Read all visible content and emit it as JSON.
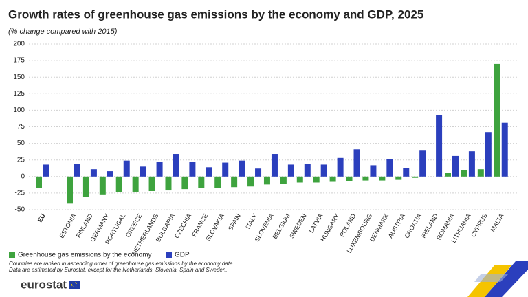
{
  "chart_data": {
    "type": "bar",
    "title": "Growth rates of greenhouse gas emissions by the economy and GDP, 2025",
    "subtitle": "(% change compared with 2015)",
    "categories": [
      "EU",
      "ESTONIA",
      "FINLAND",
      "GERMANY",
      "PORTUGAL",
      "GREECE",
      "NETHERLANDS",
      "BULGARIA",
      "CZECHIA",
      "FRANCE",
      "SLOVAKIA",
      "SPAIN",
      "ITALY",
      "SLOVENIA",
      "BELGIUM",
      "SWEDEN",
      "LATVIA",
      "HUNGARY",
      "POLAND",
      "LUXEMBOURG",
      "DENMARK",
      "AUSTRIA",
      "CROATIA",
      "IRELAND",
      "ROMANIA",
      "LITHUANIA",
      "CYPRUS",
      "MALTA"
    ],
    "series": [
      {
        "name": "Greenhouse gas emissions by the economy",
        "color": "#3ea33e",
        "values": [
          -17,
          -41,
          -31,
          -27,
          -24,
          -23,
          -22,
          -21,
          -19,
          -17,
          -17,
          -16,
          -15,
          -12,
          -11,
          -9,
          -9,
          -8,
          -7,
          -6,
          -6,
          -5,
          -2,
          0,
          6,
          10,
          11,
          170
        ]
      },
      {
        "name": "GDP",
        "color": "#2b3fbd",
        "values": [
          18,
          19,
          11,
          8,
          24,
          15,
          22,
          34,
          22,
          14,
          21,
          24,
          12,
          34,
          18,
          19,
          18,
          28,
          41,
          17,
          26,
          13,
          40,
          93,
          31,
          38,
          67,
          81
        ]
      }
    ],
    "ylim": [
      -50,
      200
    ],
    "yticks": [
      -50,
      -25,
      0,
      25,
      50,
      75,
      100,
      125,
      150,
      175,
      200
    ],
    "grid": true,
    "notes": [
      "Countries are ranked in ascending order of greenhouse gas emissions by the economy data.",
      "Data are estimated by Eurostat, except for the Netherlands, Slovenia, Spain and Sweden."
    ],
    "source": "eurostat"
  }
}
